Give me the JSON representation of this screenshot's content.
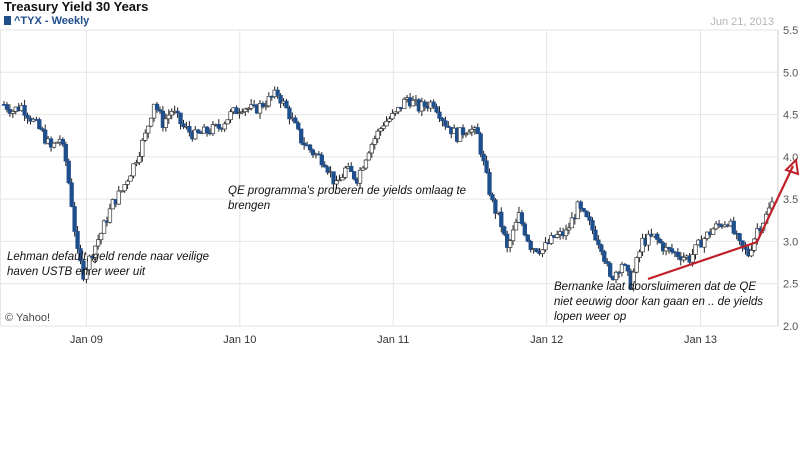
{
  "header": {
    "title": "Treasury Yield 30 Years",
    "series_label": "^TYX - Weekly",
    "date": "Jun 21, 2013"
  },
  "annotations": {
    "qe": "QE programma's proberen de yields omlaag te brengen",
    "lehman": "Lehman default, geld rende naar veilige haven USTB en er weer uit",
    "bernanke": "Bernanke laat doorsluimeren dat de QE niet eeuwig door kan gaan en .. de yields lopen weer op"
  },
  "watermark": "© Yahoo!",
  "colors": {
    "down": "#1f4e8c",
    "up": "#ffffff",
    "wick": "#222222",
    "arrow": "#c0202a",
    "grid": "#e6e6e6"
  },
  "chart_data": {
    "type": "candlestick",
    "series_name": "^TYX - Weekly",
    "x_ticks": [
      "Jan 09",
      "Jan 10",
      "Jan 11",
      "Jan 12",
      "Jan 13"
    ],
    "y_ticks": [
      "2.0",
      "2.5",
      "3.0",
      "3.5",
      "4.0",
      "4.5",
      "5.0",
      "5.5"
    ],
    "ylim": [
      2.0,
      5.5
    ],
    "x_range": [
      "2008-06-20",
      "2013-06-21"
    ],
    "close_path": [
      [
        "2008-06-20",
        4.62
      ],
      [
        "2008-07-11",
        4.55
      ],
      [
        "2008-08-01",
        4.6
      ],
      [
        "2008-08-29",
        4.42
      ],
      [
        "2008-09-19",
        4.28
      ],
      [
        "2008-10-10",
        4.1
      ],
      [
        "2008-10-31",
        4.22
      ],
      [
        "2008-11-14",
        3.95
      ],
      [
        "2008-11-28",
        3.45
      ],
      [
        "2008-12-12",
        2.85
      ],
      [
        "2008-12-26",
        2.62
      ],
      [
        "2009-01-16",
        2.88
      ],
      [
        "2009-02-06",
        3.1
      ],
      [
        "2009-03-06",
        3.45
      ],
      [
        "2009-03-27",
        3.6
      ],
      [
        "2009-04-24",
        3.9
      ],
      [
        "2009-05-22",
        4.25
      ],
      [
        "2009-06-12",
        4.65
      ],
      [
        "2009-07-03",
        4.4
      ],
      [
        "2009-07-24",
        4.55
      ],
      [
        "2009-08-21",
        4.35
      ],
      [
        "2009-09-18",
        4.25
      ],
      [
        "2009-10-16",
        4.3
      ],
      [
        "2009-11-13",
        4.35
      ],
      [
        "2009-12-11",
        4.5
      ],
      [
        "2010-01-08",
        4.6
      ],
      [
        "2010-02-05",
        4.55
      ],
      [
        "2010-03-05",
        4.65
      ],
      [
        "2010-04-02",
        4.75
      ],
      [
        "2010-04-30",
        4.5
      ],
      [
        "2010-05-28",
        4.2
      ],
      [
        "2010-06-25",
        4.05
      ],
      [
        "2010-07-23",
        3.95
      ],
      [
        "2010-08-20",
        3.65
      ],
      [
        "2010-09-10",
        3.85
      ],
      [
        "2010-10-08",
        3.75
      ],
      [
        "2010-11-05",
        4.1
      ],
      [
        "2010-12-10",
        4.4
      ],
      [
        "2011-01-07",
        4.5
      ],
      [
        "2011-02-04",
        4.7
      ],
      [
        "2011-03-04",
        4.58
      ],
      [
        "2011-04-08",
        4.65
      ],
      [
        "2011-05-06",
        4.4
      ],
      [
        "2011-06-03",
        4.25
      ],
      [
        "2011-07-01",
        4.35
      ],
      [
        "2011-07-22",
        4.25
      ],
      [
        "2011-08-12",
        3.75
      ],
      [
        "2011-08-26",
        3.45
      ],
      [
        "2011-09-16",
        3.2
      ],
      [
        "2011-09-30",
        2.9
      ],
      [
        "2011-10-28",
        3.3
      ],
      [
        "2011-11-25",
        2.95
      ],
      [
        "2011-12-23",
        2.9
      ],
      [
        "2012-01-20",
        3.05
      ],
      [
        "2012-02-17",
        3.1
      ],
      [
        "2012-03-16",
        3.4
      ],
      [
        "2012-04-13",
        3.2
      ],
      [
        "2012-05-11",
        2.95
      ],
      [
        "2012-06-01",
        2.55
      ],
      [
        "2012-06-29",
        2.75
      ],
      [
        "2012-07-20",
        2.5
      ],
      [
        "2012-08-17",
        3.0
      ],
      [
        "2012-09-14",
        3.05
      ],
      [
        "2012-10-12",
        2.9
      ],
      [
        "2012-11-09",
        2.85
      ],
      [
        "2012-12-07",
        2.8
      ],
      [
        "2013-01-04",
        3.0
      ],
      [
        "2013-02-01",
        3.15
      ],
      [
        "2013-03-08",
        3.25
      ],
      [
        "2013-04-05",
        2.95
      ],
      [
        "2013-04-26",
        2.85
      ],
      [
        "2013-05-17",
        3.15
      ],
      [
        "2013-06-07",
        3.3
      ],
      [
        "2013-06-21",
        3.45
      ]
    ]
  }
}
